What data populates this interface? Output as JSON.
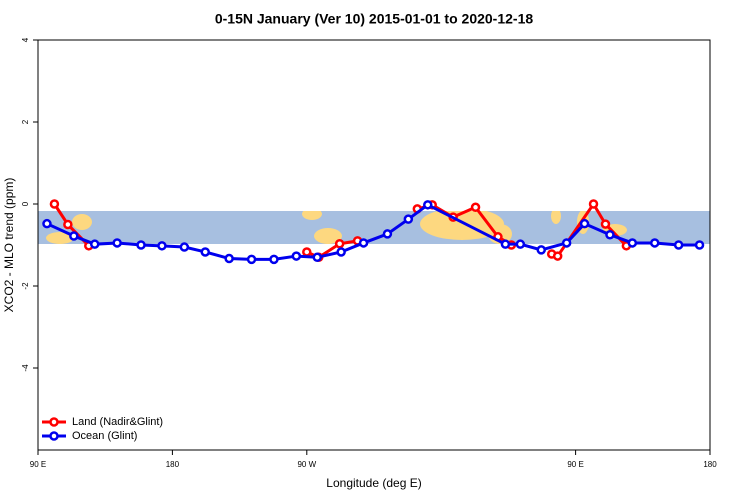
{
  "chart_data": {
    "type": "line",
    "title": "0-15N January (Ver 10)   2015-01-01 to 2020-12-18",
    "xlabel": "Longitude (deg E)",
    "ylabel": "XCO2 - MLO trend (ppm)",
    "xlim": [
      90,
      540
    ],
    "xticks": [
      {
        "value": 90,
        "label": "90 E"
      },
      180,
      {
        "value": 270,
        "label": "90 W"
      },
      {
        "value": 450,
        "label": "90 E"
      },
      {
        "value": 540,
        "label": "180"
      }
    ],
    "ylim": [
      -6,
      4
    ],
    "yticks": [
      4,
      2,
      0,
      -2,
      -4
    ],
    "legend": "bottom-left",
    "series": [
      {
        "name": "Land (Nadir&Glint)",
        "color": "#ff0000",
        "x": [
          101,
          110,
          124,
          null,
          270,
          278,
          292,
          304,
          null,
          344,
          354,
          368,
          383,
          398,
          407,
          null,
          434,
          438,
          462,
          470,
          484
        ],
        "values": [
          0.0,
          -0.5,
          -1.02,
          null,
          -1.17,
          -1.3,
          -0.97,
          -0.9,
          null,
          -0.12,
          -0.02,
          -0.32,
          -0.08,
          -0.8,
          -1.0,
          null,
          -1.22,
          -1.27,
          0.0,
          -0.49,
          -1.02
        ]
      },
      {
        "name": "Ocean (Glint)",
        "color": "#0000ee",
        "x": [
          96,
          114,
          128,
          143,
          159,
          173,
          188,
          202,
          218,
          233,
          248,
          263,
          277,
          293,
          308,
          324,
          338,
          351,
          403,
          413,
          427,
          444,
          456,
          473,
          488,
          503,
          519,
          533
        ],
        "values": [
          -0.48,
          -0.78,
          -0.98,
          -0.95,
          -1.0,
          -1.02,
          -1.05,
          -1.17,
          -1.33,
          -1.35,
          -1.35,
          -1.27,
          -1.3,
          -1.17,
          -0.95,
          -0.73,
          -0.37,
          -0.02,
          -0.98,
          -0.98,
          -1.12,
          -0.95,
          -0.48,
          -0.75,
          -0.95,
          -0.95,
          -1.0,
          -1.0
        ]
      }
    ]
  }
}
